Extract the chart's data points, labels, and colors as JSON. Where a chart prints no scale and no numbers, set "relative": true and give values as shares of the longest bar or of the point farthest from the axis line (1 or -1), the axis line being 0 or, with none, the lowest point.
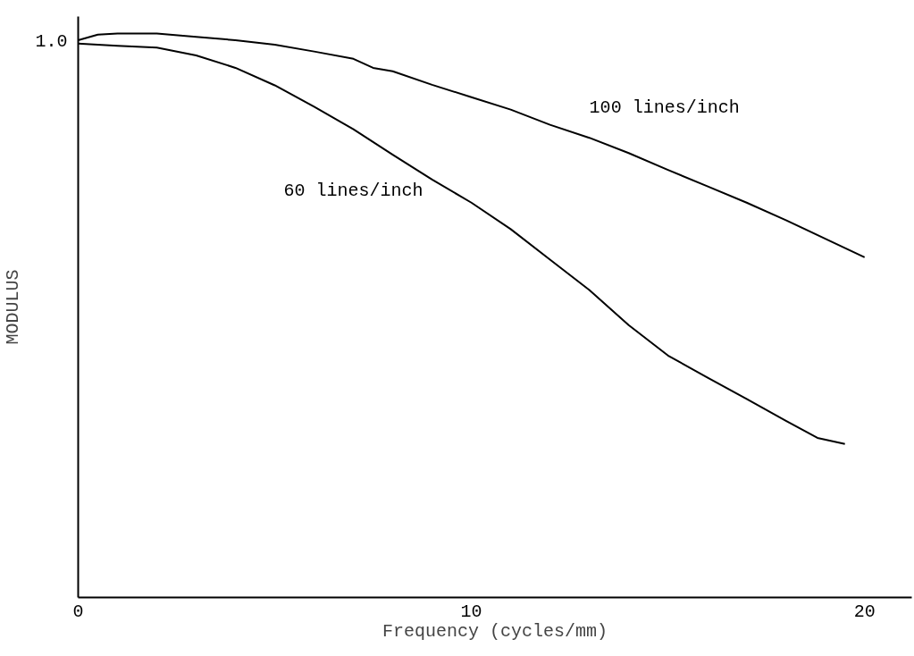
{
  "chart_data": {
    "type": "line",
    "relative": true,
    "xlabel": "Frequency (cycles/mm)",
    "ylabel": "MODULUS",
    "xlim": [
      0,
      21.2
    ],
    "xticks": [
      0,
      10,
      20
    ],
    "grid": false,
    "marker": "none",
    "line_style": "solid",
    "annotations": [
      "1.0"
    ],
    "series": [
      {
        "name": "100 lines/inch",
        "color": "#000000",
        "x": [
          0,
          0.5,
          1,
          2,
          3,
          4,
          5,
          6,
          7,
          7.5,
          8,
          9,
          10,
          11,
          12,
          13,
          14,
          15,
          16,
          17,
          18,
          19,
          20
        ],
        "values": [
          0.988,
          0.998,
          1,
          1,
          0.994,
          0.988,
          0.98,
          0.968,
          0.955,
          0.939,
          0.933,
          0.909,
          0.887,
          0.865,
          0.838,
          0.815,
          0.788,
          0.758,
          0.729,
          0.7,
          0.669,
          0.636,
          0.603
        ]
      },
      {
        "name": "60 lines/inch",
        "color": "#000000",
        "x": [
          0,
          1,
          2,
          3,
          4,
          5,
          6,
          7,
          8,
          9,
          10,
          11,
          12,
          13,
          14,
          15,
          16,
          17,
          18,
          18.8,
          19.5
        ],
        "values": [
          0.982,
          0.978,
          0.975,
          0.961,
          0.939,
          0.908,
          0.87,
          0.83,
          0.785,
          0.741,
          0.7,
          0.653,
          0.599,
          0.545,
          0.483,
          0.429,
          0.39,
          0.352,
          0.313,
          0.283,
          0.272
        ]
      }
    ]
  }
}
